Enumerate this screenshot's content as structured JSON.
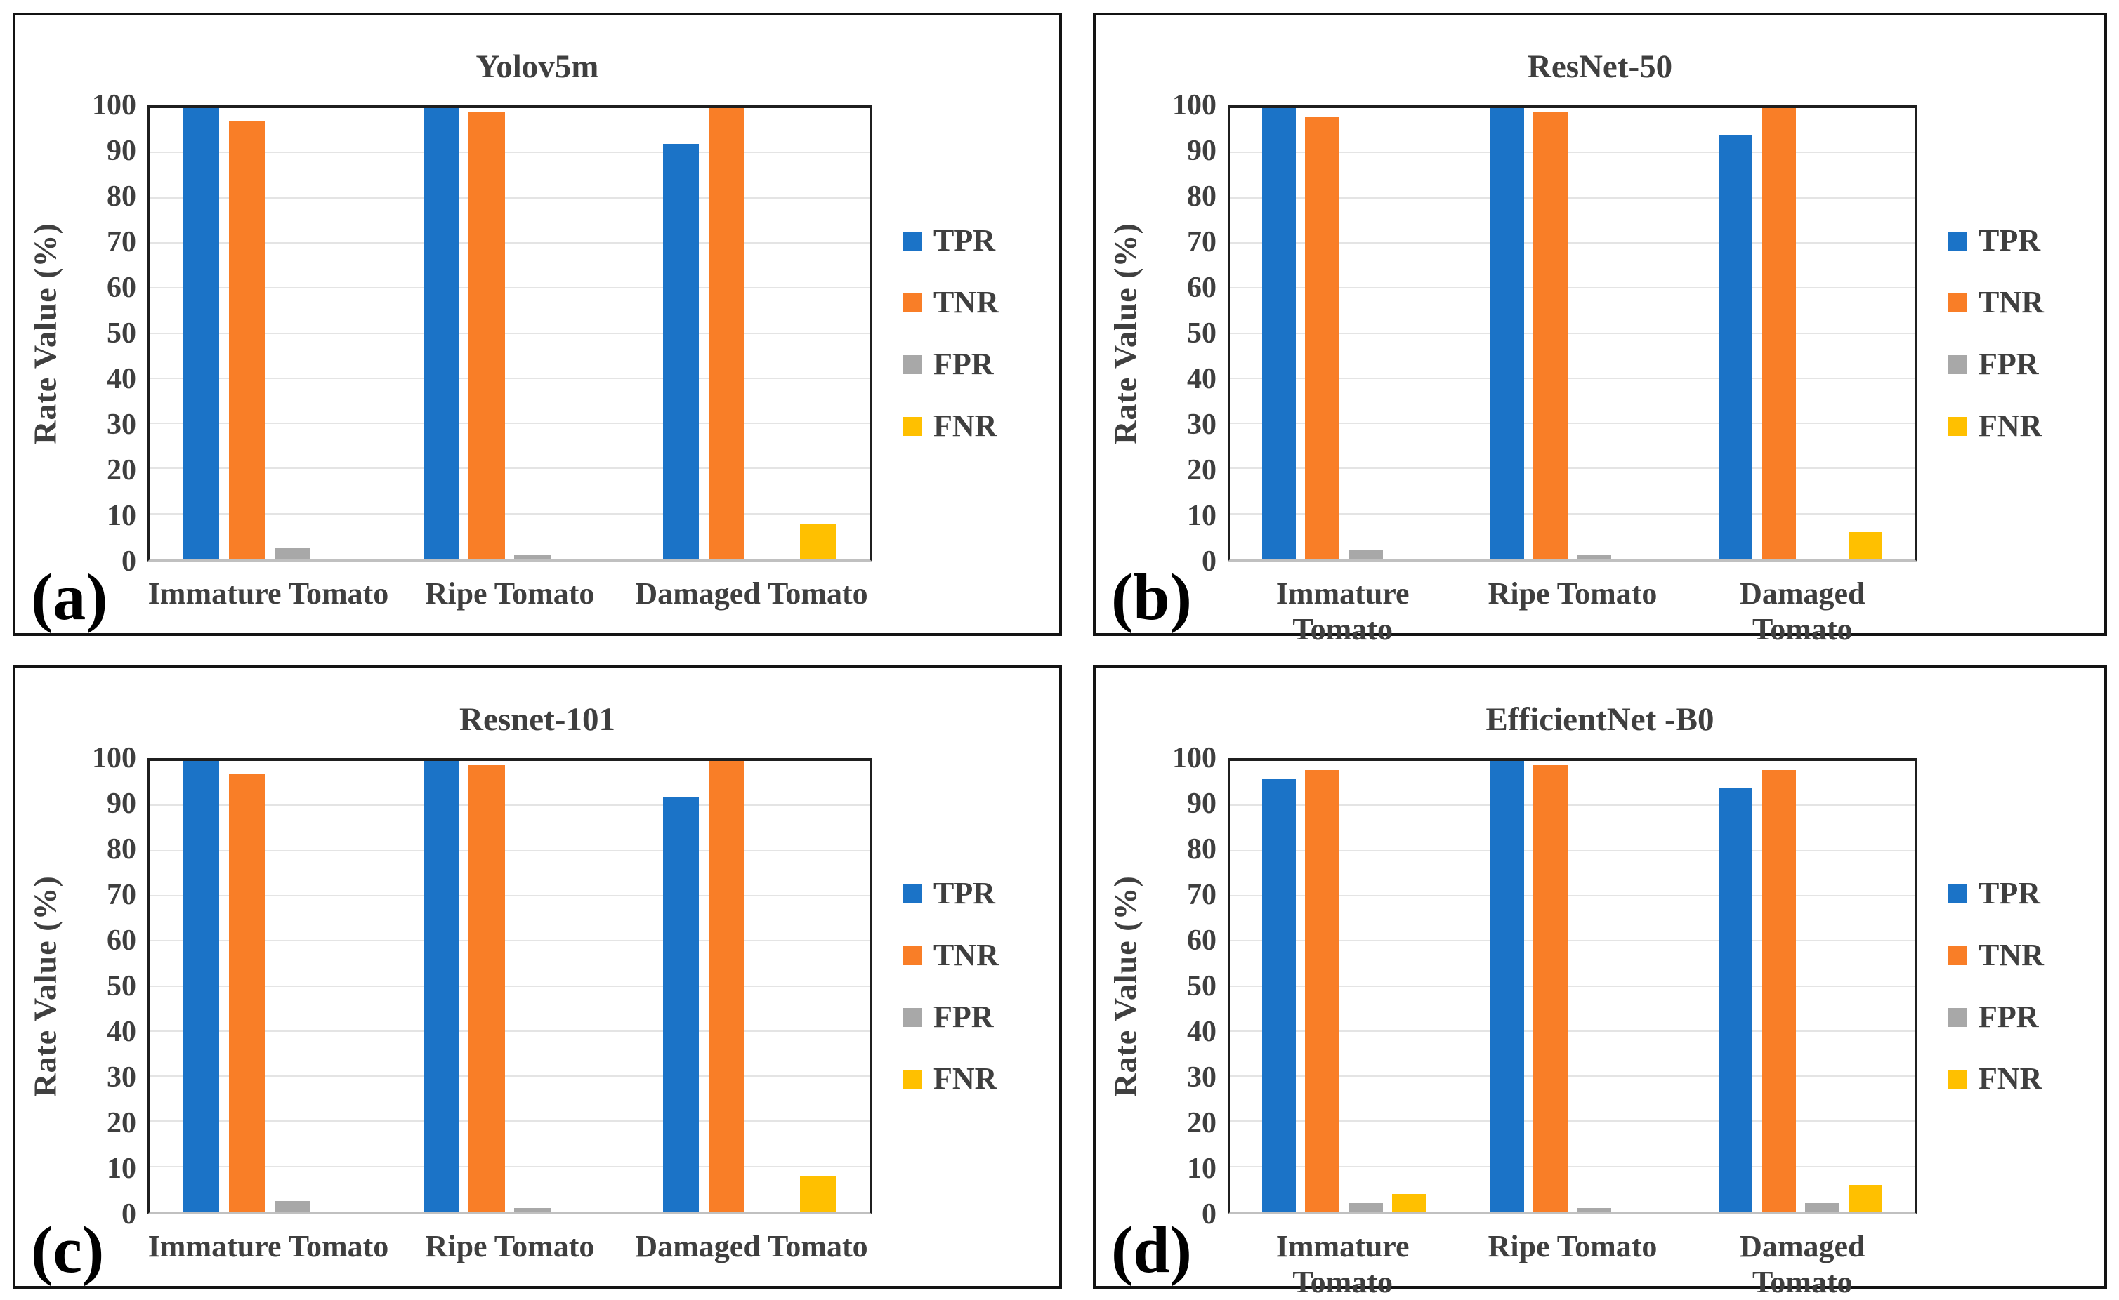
{
  "axis": {
    "ylim": [
      0,
      100
    ],
    "yticks": [
      0,
      10,
      20,
      30,
      40,
      50,
      60,
      70,
      80,
      90,
      100
    ],
    "grid": true
  },
  "colors": {
    "tpr_blue": "#1B73C7",
    "tnr_orange": "#F97E27",
    "fpr_gray": "#A8A8A8",
    "fnr_yellow": "#FFC000",
    "text_gray": "#3F3F3F",
    "gridline": "#E4E4E4",
    "baseline": "#C0C0C0",
    "panel_border": "#131313"
  },
  "chart_data": [
    {
      "type": "bar",
      "panel_letter": "(a)",
      "title": "Yolov5m",
      "ylabel": "Rate Value (%)",
      "ylim": [
        0,
        100
      ],
      "grid": true,
      "legend_position": "right",
      "categories": [
        "Immature Tomato",
        "Ripe Tomato",
        "Damaged Tomato"
      ],
      "series": [
        {
          "name": "TPR",
          "color": "#1B73C7",
          "values": [
            100,
            100,
            92
          ]
        },
        {
          "name": "TNR",
          "color": "#F97E27",
          "values": [
            97,
            99,
            100
          ]
        },
        {
          "name": "FPR",
          "color": "#A8A8A8",
          "values": [
            2.5,
            1,
            0
          ]
        },
        {
          "name": "FNR",
          "color": "#FFC000",
          "values": [
            0,
            0,
            8
          ]
        }
      ]
    },
    {
      "type": "bar",
      "panel_letter": "(b)",
      "title": "ResNet-50",
      "ylabel": "Rate Value (%)",
      "ylim": [
        0,
        100
      ],
      "grid": true,
      "legend_position": "right",
      "categories": [
        "Immature Tomato",
        "Ripe Tomato",
        "Damaged Tomato"
      ],
      "series": [
        {
          "name": "TPR",
          "color": "#1B73C7",
          "values": [
            100,
            100,
            94
          ]
        },
        {
          "name": "TNR",
          "color": "#F97E27",
          "values": [
            98,
            99,
            100
          ]
        },
        {
          "name": "FPR",
          "color": "#A8A8A8",
          "values": [
            2,
            1,
            0
          ]
        },
        {
          "name": "FNR",
          "color": "#FFC000",
          "values": [
            0,
            0,
            6
          ]
        }
      ]
    },
    {
      "type": "bar",
      "panel_letter": "(c)",
      "title": "Resnet-101",
      "ylabel": "Rate Value (%)",
      "ylim": [
        0,
        100
      ],
      "grid": true,
      "legend_position": "right",
      "categories": [
        "Immature Tomato",
        "Ripe Tomato",
        "Damaged Tomato"
      ],
      "series": [
        {
          "name": "TPR",
          "color": "#1B73C7",
          "values": [
            100,
            100,
            92
          ]
        },
        {
          "name": "TNR",
          "color": "#F97E27",
          "values": [
            97,
            99,
            100
          ]
        },
        {
          "name": "FPR",
          "color": "#A8A8A8",
          "values": [
            2.5,
            1,
            0
          ]
        },
        {
          "name": "FNR",
          "color": "#FFC000",
          "values": [
            0,
            0,
            8
          ]
        }
      ]
    },
    {
      "type": "bar",
      "panel_letter": "(d)",
      "title": "EfficientNet -B0",
      "ylabel": "Rate Value (%)",
      "ylim": [
        0,
        100
      ],
      "grid": true,
      "legend_position": "right",
      "categories": [
        "Immature Tomato",
        "Ripe Tomato",
        "Damaged Tomato"
      ],
      "series": [
        {
          "name": "TPR",
          "color": "#1B73C7",
          "values": [
            96,
            100,
            94
          ]
        },
        {
          "name": "TNR",
          "color": "#F97E27",
          "values": [
            98,
            99,
            98
          ]
        },
        {
          "name": "FPR",
          "color": "#A8A8A8",
          "values": [
            2,
            1,
            2
          ]
        },
        {
          "name": "FNR",
          "color": "#FFC000",
          "values": [
            4,
            0,
            6
          ]
        }
      ]
    }
  ]
}
